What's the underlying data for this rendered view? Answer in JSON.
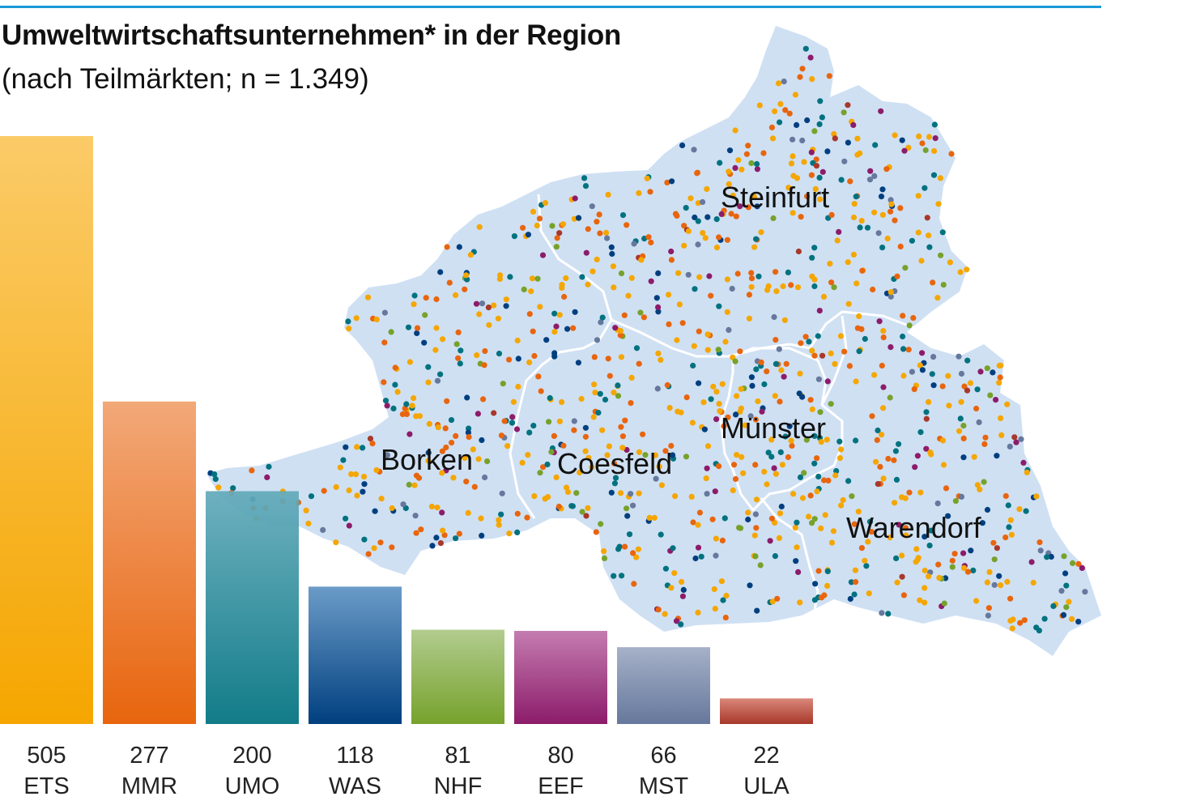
{
  "title": "Umweltwirtschaftsunternehmen* in der Region",
  "subtitle": "(nach Teilmärkten; n = 1.349)",
  "regions": [
    "Steinfurt",
    "Borken",
    "Coesfeld",
    "Münster",
    "Warendorf"
  ],
  "chart_data": {
    "type": "bar",
    "title": "Umweltwirtschaftsunternehmen* in der Region",
    "subtitle": "(nach Teilmärkten; n = 1.349)",
    "categories": [
      "ETS",
      "MMR",
      "UMO",
      "WAS",
      "NHF",
      "EEF",
      "MST",
      "ULA"
    ],
    "values": [
      505,
      277,
      200,
      118,
      81,
      80,
      66,
      22
    ],
    "ylim": [
      0,
      505
    ],
    "grid": false,
    "legend": "none",
    "colors": [
      [
        "#fbcb68",
        "#f5a600"
      ],
      [
        "#f2a878",
        "#e8650e"
      ],
      [
        "#64abbb",
        "#00727f"
      ],
      [
        "#6b9cc8",
        "#003f7f"
      ],
      [
        "#b2cc8e",
        "#76a22c"
      ],
      [
        "#c47cb0",
        "#8c1c6a"
      ],
      [
        "#a6b1c9",
        "#66789c"
      ],
      [
        "#d9877a",
        "#a7382a"
      ]
    ]
  },
  "map_colors": {
    "land": "#cfe0f3",
    "border": "#ffffff",
    "dots": [
      "#f5a600",
      "#e8650e",
      "#00727f",
      "#003f7f",
      "#76a22c",
      "#8c1c6a",
      "#66789c",
      "#a7382a"
    ]
  }
}
